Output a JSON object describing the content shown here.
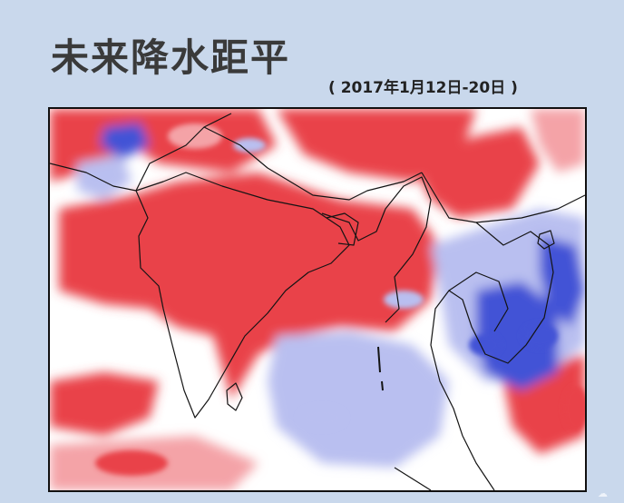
{
  "header": {
    "title": "未来降水距平",
    "subtitle": "( 2017年1月12日-20日 )"
  },
  "map": {
    "colors": {
      "positive_anomaly": "#e9434a",
      "positive_light": "#f4a3a7",
      "neutral": "#ffffff",
      "negative_light": "#b9bff0",
      "negative_anomaly": "#4352d6"
    }
  }
}
